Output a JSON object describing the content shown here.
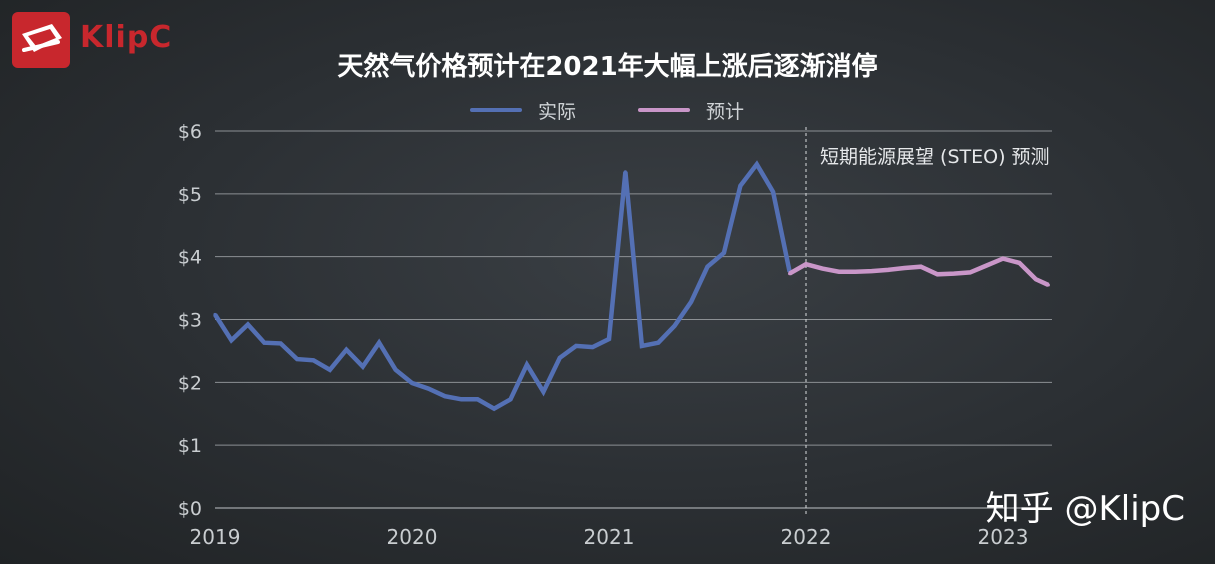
{
  "brand": {
    "logo_text": "KlipC",
    "logo_color": "#c8272d"
  },
  "watermark": "知乎 @KlipC",
  "chart_data": {
    "type": "line",
    "title": "天然气价格预计在2021年大幅上涨后逐渐消停",
    "xlabel": "",
    "ylabel": "",
    "ylim": [
      0,
      6
    ],
    "xlim": [
      2019.0,
      2023.23
    ],
    "y_ticks": [
      0,
      1,
      2,
      3,
      4,
      5,
      6
    ],
    "y_tick_labels": [
      "$0",
      "$1",
      "$2",
      "$3",
      "$4",
      "$5",
      "$6"
    ],
    "x_ticks": [
      2019,
      2020,
      2021,
      2022,
      2023
    ],
    "x_tick_labels": [
      "2019",
      "2020",
      "2021",
      "2022",
      "2023"
    ],
    "grid": "horizontal",
    "legend_position": "top-center",
    "annotation": {
      "x": 2022.0,
      "text": "短期能源展望 (STEO) 预测",
      "style": "dashed vertical line"
    },
    "series": [
      {
        "name": "实际",
        "color": "#5470b4",
        "x": [
          2019.0,
          2019.083,
          2019.167,
          2019.25,
          2019.333,
          2019.417,
          2019.5,
          2019.583,
          2019.667,
          2019.75,
          2019.833,
          2019.917,
          2020.0,
          2020.083,
          2020.167,
          2020.25,
          2020.333,
          2020.417,
          2020.5,
          2020.583,
          2020.667,
          2020.75,
          2020.833,
          2020.917,
          2021.0,
          2021.083,
          2021.167,
          2021.25,
          2021.333,
          2021.417,
          2021.5,
          2021.583,
          2021.667,
          2021.75,
          2021.833,
          2021.917
        ],
        "values": [
          3.08,
          2.67,
          2.92,
          2.63,
          2.62,
          2.37,
          2.35,
          2.2,
          2.52,
          2.25,
          2.63,
          2.2,
          1.99,
          1.9,
          1.78,
          1.73,
          1.73,
          1.58,
          1.73,
          2.28,
          1.85,
          2.39,
          2.58,
          2.56,
          2.69,
          5.35,
          2.58,
          2.63,
          2.9,
          3.28,
          3.84,
          4.06,
          5.13,
          5.47,
          5.03,
          3.76
        ]
      },
      {
        "name": "预计",
        "color": "#c996c8",
        "x": [
          2021.917,
          2022.0,
          2022.083,
          2022.167,
          2022.25,
          2022.333,
          2022.417,
          2022.5,
          2022.583,
          2022.667,
          2022.75,
          2022.833,
          2022.917,
          2023.0,
          2023.083,
          2023.167,
          2023.23
        ],
        "values": [
          3.73,
          3.88,
          3.81,
          3.76,
          3.76,
          3.77,
          3.79,
          3.82,
          3.84,
          3.72,
          3.73,
          3.75,
          3.86,
          3.97,
          3.9,
          3.64,
          3.55
        ]
      }
    ]
  }
}
